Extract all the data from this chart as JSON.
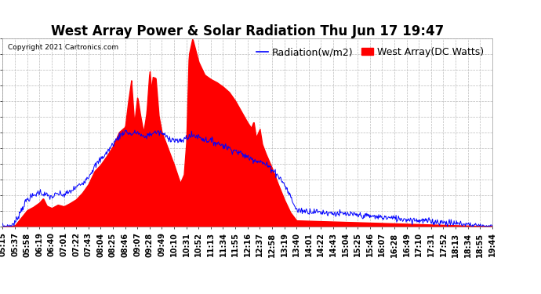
{
  "title": "West Array Power & Solar Radiation Thu Jun 17 19:47",
  "copyright": "Copyright 2021 Cartronics.com",
  "legend_radiation": "Radiation(w/m2)",
  "legend_west": "West Array(DC Watts)",
  "ymin": 0.0,
  "ymax": 1737.5,
  "yticks": [
    0.0,
    144.8,
    289.6,
    434.4,
    579.2,
    723.9,
    868.7,
    1013.5,
    1158.3,
    1303.1,
    1447.9,
    1592.7,
    1737.5
  ],
  "background_color": "#FFFFFF",
  "fill_color": "#FF0000",
  "line_color": "#0000FF",
  "grid_color": "#BBBBBB",
  "xtick_labels": [
    "05:15",
    "05:37",
    "05:58",
    "06:19",
    "06:40",
    "07:01",
    "07:22",
    "07:43",
    "08:04",
    "08:25",
    "08:46",
    "09:07",
    "09:28",
    "09:49",
    "10:10",
    "10:31",
    "10:52",
    "11:13",
    "11:34",
    "11:55",
    "12:16",
    "12:37",
    "12:58",
    "13:19",
    "13:40",
    "14:01",
    "14:22",
    "14:43",
    "15:04",
    "15:25",
    "15:46",
    "16:07",
    "16:28",
    "16:49",
    "17:10",
    "17:31",
    "17:52",
    "18:13",
    "18:34",
    "18:55",
    "19:44"
  ],
  "title_fontsize": 12,
  "tick_fontsize": 7,
  "legend_fontsize": 9,
  "radiation_color": "#0000FF",
  "west_color": "#FF0000"
}
